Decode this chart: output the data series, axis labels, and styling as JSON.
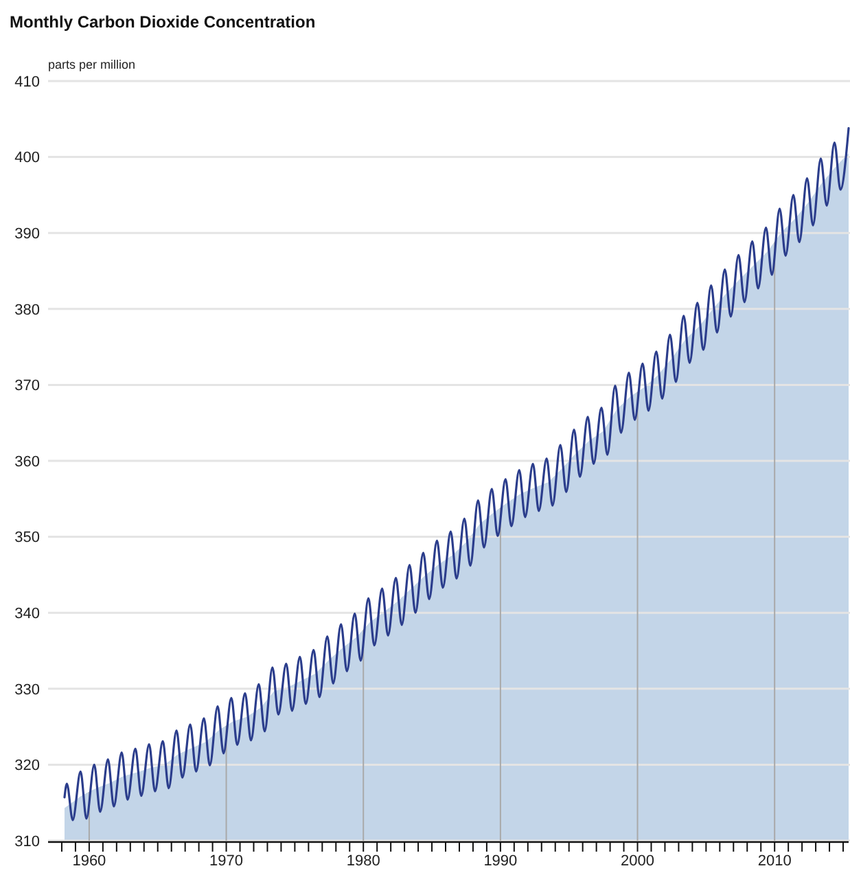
{
  "chart_data": {
    "type": "line",
    "title": "Monthly Carbon Dioxide Concentration",
    "ylabel": "parts per million",
    "grid": true,
    "xlim": [
      1957,
      2015.4
    ],
    "ylim": [
      310,
      410
    ],
    "yticks": [
      310,
      320,
      330,
      340,
      350,
      360,
      370,
      380,
      390,
      400,
      410
    ],
    "xticks": [
      {
        "value": 1958,
        "label": null
      },
      {
        "value": 1959,
        "label": null
      },
      1960,
      {
        "value": 1961,
        "label": null
      },
      {
        "value": 1962,
        "label": null
      },
      {
        "value": 1963,
        "label": null
      },
      {
        "value": 1964,
        "label": null
      },
      {
        "value": 1965,
        "label": null
      },
      {
        "value": 1966,
        "label": null
      },
      {
        "value": 1967,
        "label": null
      },
      {
        "value": 1968,
        "label": null
      },
      {
        "value": 1969,
        "label": null
      },
      1970,
      {
        "value": 1971,
        "label": null
      },
      {
        "value": 1972,
        "label": null
      },
      {
        "value": 1973,
        "label": null
      },
      {
        "value": 1974,
        "label": null
      },
      {
        "value": 1975,
        "label": null
      },
      {
        "value": 1976,
        "label": null
      },
      {
        "value": 1977,
        "label": null
      },
      {
        "value": 1978,
        "label": null
      },
      {
        "value": 1979,
        "label": null
      },
      1980,
      {
        "value": 1981,
        "label": null
      },
      {
        "value": 1982,
        "label": null
      },
      {
        "value": 1983,
        "label": null
      },
      {
        "value": 1984,
        "label": null
      },
      {
        "value": 1985,
        "label": null
      },
      {
        "value": 1986,
        "label": null
      },
      {
        "value": 1987,
        "label": null
      },
      {
        "value": 1988,
        "label": null
      },
      {
        "value": 1989,
        "label": null
      },
      1990,
      {
        "value": 1991,
        "label": null
      },
      {
        "value": 1992,
        "label": null
      },
      {
        "value": 1993,
        "label": null
      },
      {
        "value": 1994,
        "label": null
      },
      {
        "value": 1995,
        "label": null
      },
      {
        "value": 1996,
        "label": null
      },
      {
        "value": 1997,
        "label": null
      },
      {
        "value": 1998,
        "label": null
      },
      {
        "value": 1999,
        "label": null
      },
      2000,
      {
        "value": 2001,
        "label": null
      },
      {
        "value": 2002,
        "label": null
      },
      {
        "value": 2003,
        "label": null
      },
      {
        "value": 2004,
        "label": null
      },
      {
        "value": 2005,
        "label": null
      },
      {
        "value": 2006,
        "label": null
      },
      {
        "value": 2007,
        "label": null
      },
      {
        "value": 2008,
        "label": null
      },
      {
        "value": 2009,
        "label": null
      },
      2010,
      {
        "value": 2011,
        "label": null
      },
      {
        "value": 2012,
        "label": null
      },
      {
        "value": 2013,
        "label": null
      },
      {
        "value": 2014,
        "label": null
      },
      {
        "value": 2015,
        "label": null
      }
    ],
    "series": [
      {
        "type": "area",
        "color": "#c3d5e8",
        "x": [
          1958.2,
          1959.5,
          1960.5,
          1961.5,
          1962.5,
          1963.5,
          1964.5,
          1965.5,
          1966.5,
          1967.5,
          1968.5,
          1969.5,
          1970.5,
          1971.5,
          1972.5,
          1973.5,
          1974.5,
          1975.5,
          1976.5,
          1977.5,
          1978.5,
          1979.5,
          1980.5,
          1981.5,
          1982.5,
          1983.5,
          1984.5,
          1985.5,
          1986.5,
          1987.5,
          1988.5,
          1989.5,
          1990.5,
          1991.5,
          1992.5,
          1993.5,
          1994.5,
          1995.5,
          1996.5,
          1997.5,
          1998.5,
          1999.5,
          2000.5,
          2001.5,
          2002.5,
          2003.5,
          2004.5,
          2005.5,
          2006.5,
          2007.5,
          2008.5,
          2009.5,
          2010.5,
          2011.5,
          2012.5,
          2013.5,
          2014.5,
          2015.4
        ],
        "values": [
          314.3,
          316.0,
          316.9,
          317.6,
          318.5,
          319.0,
          319.6,
          320.0,
          321.4,
          322.2,
          323.0,
          324.6,
          325.7,
          326.3,
          327.5,
          329.7,
          330.2,
          331.1,
          332.0,
          333.8,
          335.4,
          336.8,
          338.8,
          340.1,
          341.5,
          343.2,
          344.9,
          346.4,
          347.6,
          349.3,
          351.7,
          353.2,
          354.5,
          355.7,
          356.5,
          357.2,
          359.0,
          361.0,
          362.7,
          363.9,
          366.8,
          368.5,
          369.7,
          371.3,
          373.5,
          376.0,
          377.7,
          380.0,
          382.1,
          384.0,
          385.8,
          387.6,
          390.1,
          391.9,
          394.1,
          396.7,
          398.8,
          400.5
        ]
      },
      {
        "color": "#2b3d8c",
        "x": [
          1958.2,
          1958.37,
          1958.8,
          1959.37,
          1959.8,
          1960.37,
          1960.8,
          1961.37,
          1961.8,
          1962.37,
          1962.8,
          1963.37,
          1963.8,
          1964.37,
          1964.8,
          1965.37,
          1965.8,
          1966.37,
          1966.8,
          1967.37,
          1967.8,
          1968.37,
          1968.8,
          1969.37,
          1969.8,
          1970.37,
          1970.8,
          1971.37,
          1971.8,
          1972.37,
          1972.8,
          1973.37,
          1973.8,
          1974.37,
          1974.8,
          1975.37,
          1975.8,
          1976.37,
          1976.8,
          1977.37,
          1977.8,
          1978.37,
          1978.8,
          1979.37,
          1979.8,
          1980.37,
          1980.8,
          1981.37,
          1981.8,
          1982.37,
          1982.8,
          1983.37,
          1983.8,
          1984.37,
          1984.8,
          1985.37,
          1985.8,
          1986.37,
          1986.8,
          1987.37,
          1987.8,
          1988.37,
          1988.8,
          1989.37,
          1989.8,
          1990.37,
          1990.8,
          1991.37,
          1991.8,
          1992.37,
          1992.8,
          1993.37,
          1993.8,
          1994.37,
          1994.8,
          1995.37,
          1995.8,
          1996.37,
          1996.8,
          1997.37,
          1997.8,
          1998.37,
          1998.8,
          1999.37,
          1999.8,
          2000.37,
          2000.8,
          2001.37,
          2001.8,
          2002.37,
          2002.8,
          2003.37,
          2003.8,
          2004.37,
          2004.8,
          2005.37,
          2005.8,
          2006.37,
          2006.8,
          2007.37,
          2007.8,
          2008.37,
          2008.8,
          2009.37,
          2009.8,
          2010.37,
          2010.8,
          2011.37,
          2011.8,
          2012.37,
          2012.8,
          2013.37,
          2013.8,
          2014.37,
          2014.8,
          2015.4
        ],
        "values": [
          315.7,
          317.5,
          312.7,
          319.1,
          312.9,
          320.0,
          313.8,
          320.7,
          314.5,
          321.6,
          315.4,
          322.1,
          315.9,
          322.7,
          316.5,
          323.1,
          316.9,
          324.5,
          318.3,
          325.3,
          319.1,
          326.1,
          319.9,
          327.7,
          321.5,
          328.8,
          322.6,
          329.4,
          323.2,
          330.6,
          324.4,
          332.8,
          326.6,
          333.3,
          327.1,
          334.2,
          328.0,
          335.1,
          328.9,
          336.9,
          330.7,
          338.5,
          332.3,
          339.9,
          333.7,
          341.9,
          335.7,
          343.2,
          337.0,
          344.6,
          338.4,
          346.3,
          340.0,
          347.9,
          341.8,
          349.5,
          343.3,
          350.7,
          344.5,
          352.4,
          346.2,
          354.8,
          348.6,
          356.3,
          350.1,
          357.6,
          351.4,
          358.8,
          352.6,
          359.6,
          353.4,
          360.3,
          354.1,
          362.1,
          355.9,
          364.1,
          357.9,
          365.8,
          359.6,
          367.0,
          360.8,
          369.9,
          363.7,
          371.6,
          365.4,
          372.8,
          366.6,
          374.4,
          368.2,
          376.6,
          370.4,
          379.1,
          372.9,
          380.8,
          374.6,
          383.1,
          376.9,
          385.2,
          379.0,
          387.1,
          380.9,
          388.9,
          382.7,
          390.7,
          384.5,
          393.2,
          387.0,
          395.0,
          388.8,
          397.2,
          391.0,
          399.8,
          393.6,
          401.9,
          395.7,
          403.8
        ]
      }
    ]
  }
}
